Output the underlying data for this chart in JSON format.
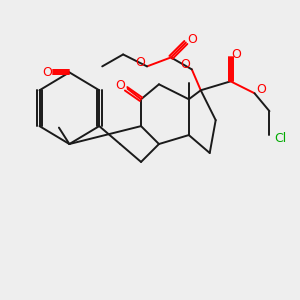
{
  "background_color": "#eeeeee",
  "bond_color": "#1a1a1a",
  "oxygen_color": "#ff0000",
  "chlorine_color": "#00aa00",
  "line_width": 1.4,
  "figsize": [
    3.0,
    3.0
  ],
  "dpi": 100,
  "xlim": [
    0,
    10
  ],
  "ylim": [
    0,
    10
  ]
}
